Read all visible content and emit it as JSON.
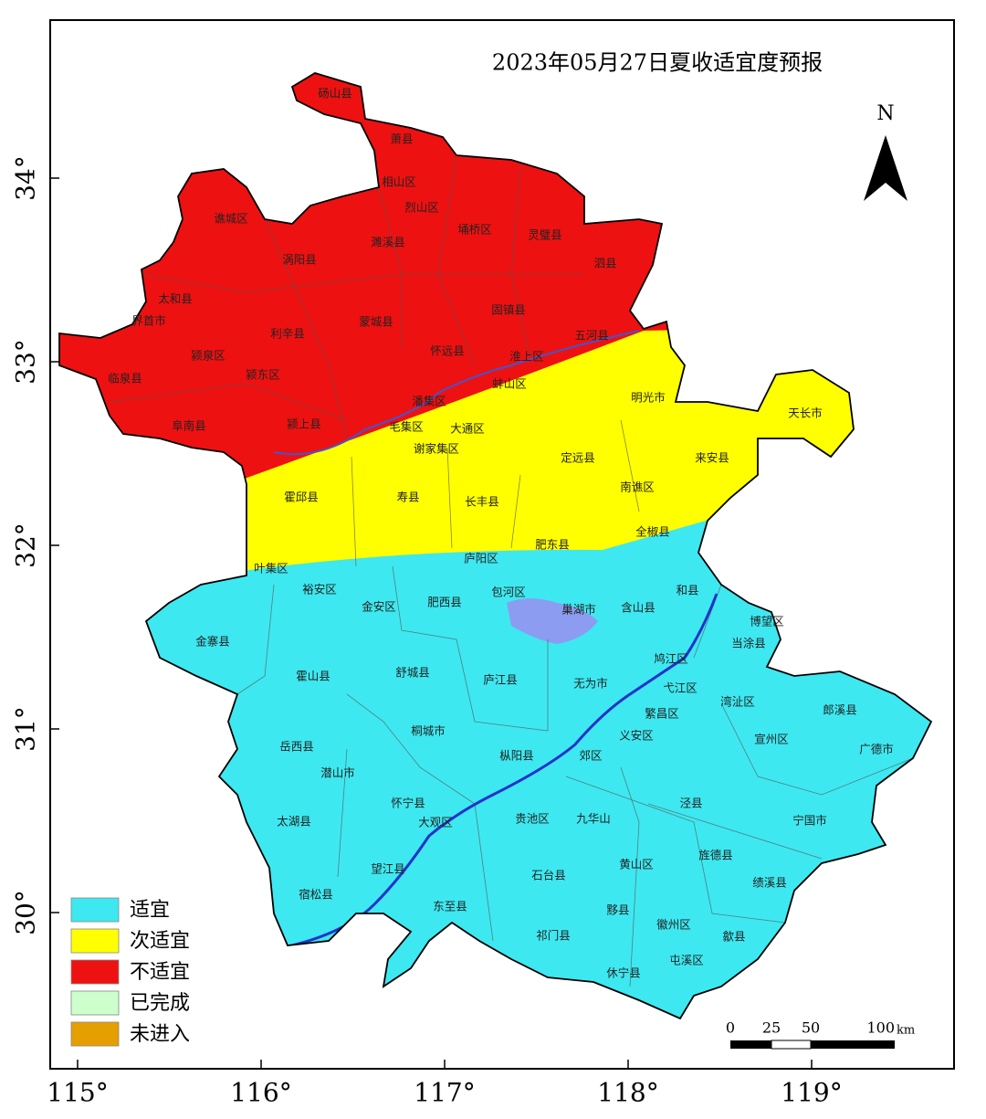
{
  "title": "2023年05月27日夏收适宜度预报",
  "north": "N",
  "lon_ticks": [
    {
      "value": 115,
      "label": "115°"
    },
    {
      "value": 116,
      "label": "116°"
    },
    {
      "value": 117,
      "label": "117°"
    },
    {
      "value": 118,
      "label": "118°"
    },
    {
      "value": 119,
      "label": "119°"
    }
  ],
  "lat_ticks": [
    {
      "value": 30,
      "label": "30°"
    },
    {
      "value": 31,
      "label": "31°"
    },
    {
      "value": 32,
      "label": "32°"
    },
    {
      "value": 33,
      "label": "33°"
    },
    {
      "value": 34,
      "label": "34°"
    }
  ],
  "legend": [
    {
      "label": "适宜",
      "color": "#3ee8f0"
    },
    {
      "label": "次适宜",
      "color": "#ffff00"
    },
    {
      "label": "不适宜",
      "color": "#ee1111"
    },
    {
      "label": "已完成",
      "color": "#ccffcc"
    },
    {
      "label": "未进入",
      "color": "#e69f00"
    }
  ],
  "scale_bar": {
    "labels": [
      "0",
      "25",
      "50",
      "100"
    ],
    "unit": "km"
  },
  "regions": [
    "砀山县",
    "萧县",
    "相山区",
    "烈山区",
    "埇桥区",
    "灵璧县",
    "濉溪县",
    "谯城区",
    "涡阳县",
    "泗县",
    "太和县",
    "界首市",
    "利辛县",
    "蒙城县",
    "固镇县",
    "五河县",
    "怀远县",
    "淮上区",
    "颍泉区",
    "临泉县",
    "颍东区",
    "蚌山区",
    "潘集区",
    "明光市",
    "天长市",
    "阜南县",
    "颍上县",
    "毛集区",
    "大通区",
    "谢家集区",
    "定远县",
    "来安县",
    "南谯区",
    "霍邱县",
    "寿县",
    "长丰县",
    "肥东县",
    "全椒县",
    "庐阳区",
    "叶集区",
    "裕安区",
    "金安区",
    "肥西县",
    "包河区",
    "巢湖市",
    "含山县",
    "和县",
    "博望区",
    "当涂县",
    "金寨县",
    "霍山县",
    "舒城县",
    "庐江县",
    "无为市",
    "鸠江区",
    "弋江区",
    "湾沚区",
    "繁昌区",
    "郎溪县",
    "桐城市",
    "义安区",
    "宣州区",
    "广德市",
    "岳西县",
    "枞阳县",
    "郊区",
    "潜山市",
    "怀宁县",
    "泾县",
    "大观区",
    "贵池区",
    "九华山",
    "宁国市",
    "太湖县",
    "旌德县",
    "黄山区",
    "望江县",
    "石台县",
    "绩溪县",
    "宿松县",
    "东至县",
    "黟县",
    "祁门县",
    "徽州区",
    "歙县",
    "屯溪区",
    "休宁县"
  ]
}
